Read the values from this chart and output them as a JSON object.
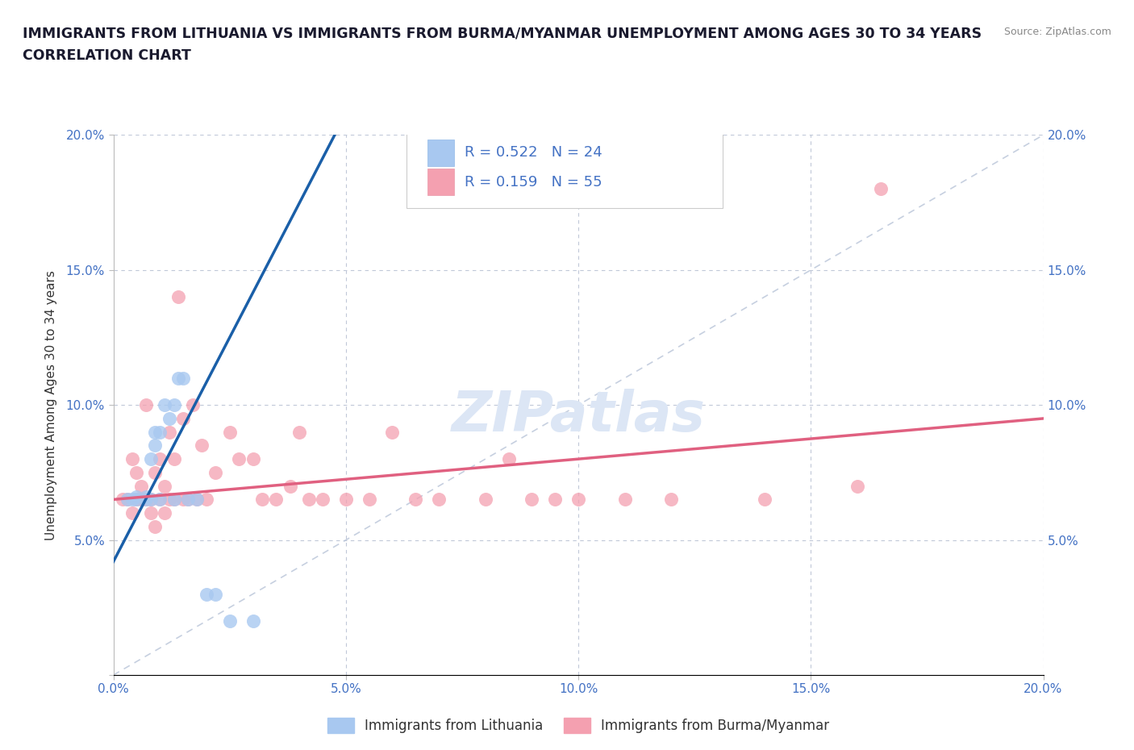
{
  "title_line1": "IMMIGRANTS FROM LITHUANIA VS IMMIGRANTS FROM BURMA/MYANMAR UNEMPLOYMENT AMONG AGES 30 TO 34 YEARS",
  "title_line2": "CORRELATION CHART",
  "source_text": "Source: ZipAtlas.com",
  "watermark_text": "ZIPatlas",
  "ylabel": "Unemployment Among Ages 30 to 34 years",
  "xlim": [
    0.0,
    0.2
  ],
  "ylim": [
    0.0,
    0.2
  ],
  "legend_R1": "0.522",
  "legend_N1": "24",
  "legend_R2": "0.159",
  "legend_N2": "55",
  "color_lithuania": "#a8c8f0",
  "color_burma": "#f4a0b0",
  "color_line1": "#1a5fa8",
  "color_line2": "#e06080",
  "color_title": "#1a1a2e",
  "color_axis_labels": "#4472c4",
  "color_watermark": "#dce6f5",
  "title_fontsize": 12.5,
  "label_fontsize": 11,
  "tick_fontsize": 11,
  "legend_fontsize": 13,
  "lith_x": [
    0.003,
    0.004,
    0.005,
    0.005,
    0.007,
    0.007,
    0.008,
    0.008,
    0.009,
    0.009,
    0.01,
    0.01,
    0.011,
    0.012,
    0.013,
    0.013,
    0.014,
    0.015,
    0.016,
    0.018,
    0.02,
    0.022,
    0.025,
    0.03
  ],
  "lith_y": [
    0.065,
    0.065,
    0.065,
    0.066,
    0.065,
    0.066,
    0.065,
    0.08,
    0.085,
    0.09,
    0.065,
    0.09,
    0.1,
    0.095,
    0.065,
    0.1,
    0.11,
    0.11,
    0.065,
    0.065,
    0.03,
    0.03,
    0.02,
    0.02
  ],
  "burma_x": [
    0.002,
    0.003,
    0.004,
    0.004,
    0.005,
    0.005,
    0.006,
    0.006,
    0.007,
    0.007,
    0.008,
    0.008,
    0.009,
    0.009,
    0.01,
    0.01,
    0.011,
    0.011,
    0.012,
    0.012,
    0.013,
    0.013,
    0.014,
    0.015,
    0.015,
    0.016,
    0.017,
    0.018,
    0.019,
    0.02,
    0.022,
    0.025,
    0.027,
    0.03,
    0.032,
    0.035,
    0.038,
    0.04,
    0.042,
    0.045,
    0.05,
    0.055,
    0.06,
    0.065,
    0.07,
    0.08,
    0.085,
    0.09,
    0.095,
    0.1,
    0.11,
    0.12,
    0.14,
    0.16,
    0.165
  ],
  "burma_y": [
    0.065,
    0.065,
    0.06,
    0.08,
    0.065,
    0.075,
    0.065,
    0.07,
    0.065,
    0.1,
    0.06,
    0.065,
    0.055,
    0.075,
    0.065,
    0.08,
    0.06,
    0.07,
    0.065,
    0.09,
    0.065,
    0.08,
    0.14,
    0.065,
    0.095,
    0.065,
    0.1,
    0.065,
    0.085,
    0.065,
    0.075,
    0.09,
    0.08,
    0.08,
    0.065,
    0.065,
    0.07,
    0.09,
    0.065,
    0.065,
    0.065,
    0.065,
    0.09,
    0.065,
    0.065,
    0.065,
    0.08,
    0.065,
    0.065,
    0.065,
    0.065,
    0.065,
    0.065,
    0.07,
    0.18
  ]
}
